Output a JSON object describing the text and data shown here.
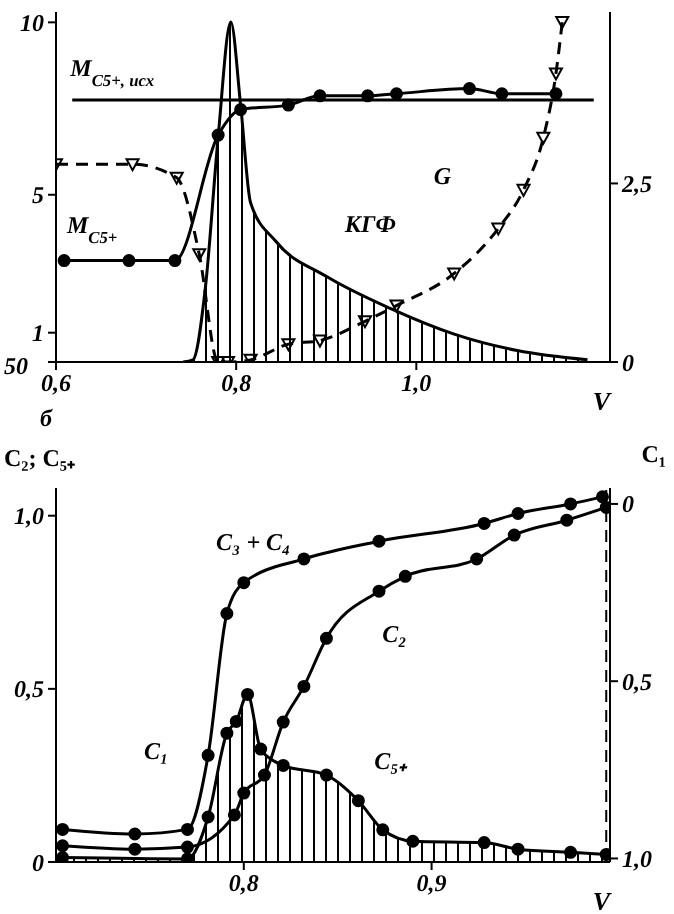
{
  "chart_data": [
    {
      "type": "line",
      "xlabel": "V",
      "xlim": [
        0.6,
        1.215
      ],
      "xticks": [
        {
          "value": 0.6,
          "label": "0,6"
        },
        {
          "value": 0.8,
          "label": "0,8"
        },
        {
          "value": 1.0,
          "label": "1,0"
        }
      ],
      "ylim": [
        0.15,
        10.3
      ],
      "yticks": [
        {
          "value": 0.15,
          "label": null
        },
        1,
        5,
        10
      ],
      "y2lim": [
        0,
        4.9
      ],
      "y2ticks": [
        0,
        {
          "value": 2.5,
          "label": "2,5"
        }
      ],
      "series": [
        {
          "name": "M$_{C5+, исх}$",
          "color": "#000000",
          "marker": "none",
          "x": [
            0.618,
            1.197
          ],
          "values": [
            7.75,
            7.75
          ]
        },
        {
          "name": "M$_{C5+}$",
          "color": "#000000",
          "marker": "circle",
          "x": [
            0.609,
            0.681,
            0.732,
            0.78,
            0.805,
            0.858,
            0.893,
            0.946,
            0.978,
            1.059,
            1.095,
            1.155
          ],
          "values": [
            3.09,
            3.09,
            3.09,
            6.73,
            7.47,
            7.6,
            7.87,
            7.87,
            7.93,
            8.08,
            7.93,
            7.93
          ]
        },
        {
          "name": "КГФ",
          "type": "area",
          "color": "#000000",
          "axis": "y2",
          "marker": "none",
          "x": [
            0.741,
            0.752,
            0.766,
            0.78,
            0.794,
            0.805,
            0.816,
            0.844,
            0.9,
            0.971,
            1.042,
            1.112,
            1.19
          ],
          "values": [
            0,
            0.03,
            1.06,
            3.15,
            4.76,
            3.59,
            2.23,
            1.69,
            1.2,
            0.75,
            0.39,
            0.16,
            0.03
          ]
        },
        {
          "name": "G",
          "color": "#000000",
          "axis": "y2",
          "marker": "triangle",
          "line_style": "dashed",
          "x": [
            0.6,
            0.685,
            0.734,
            0.759,
            0.78,
            0.791,
            0.816,
            0.858,
            0.893,
            0.943,
            0.978,
            1.042,
            1.091,
            1.119,
            1.141,
            1.155,
            1.162
          ],
          "values": [
            2.77,
            2.77,
            2.58,
            1.51,
            0,
            0,
            0.03,
            0.25,
            0.3,
            0.57,
            0.79,
            1.24,
            1.87,
            2.41,
            3.14,
            4.04,
            4.76
          ]
        }
      ],
      "annotations": [
        "50"
      ]
    },
    {
      "type": "line",
      "xlabel": "V",
      "ylabel": "C₂; C₅₊",
      "y2label": "C₁",
      "xlim": [
        0.7,
        0.995
      ],
      "xticks": [
        {
          "value": 0.8,
          "label": "0,8"
        },
        {
          "value": 0.9,
          "label": "0,9"
        }
      ],
      "ylim": [
        0,
        1.08
      ],
      "yticks": [
        0,
        {
          "value": 0.5,
          "label": "0,5"
        },
        {
          "value": 1.0,
          "label": "1,0"
        }
      ],
      "y2lim": [
        1.01,
        -0.045
      ],
      "y2ticks": [
        0,
        {
          "value": 0.5,
          "label": "0,5"
        },
        {
          "value": 1.0,
          "label": "1,0"
        }
      ],
      "series": [
        {
          "name": "C₁",
          "color": "#000000",
          "axis": "y2",
          "marker": "circle",
          "x": [
            0.7035,
            0.742,
            0.77,
            0.781,
            0.791,
            0.8,
            0.832,
            0.872,
            0.928,
            0.946,
            0.974,
            0.991
          ],
          "values": [
            0.918,
            0.931,
            0.918,
            0.709,
            0.309,
            0.222,
            0.155,
            0.105,
            0.055,
            0.027,
            0,
            -0.02
          ]
        },
        {
          "name": "C₂",
          "color": "#000000",
          "marker": "circle",
          "x": [
            0.7035,
            0.742,
            0.77,
            0.795,
            0.8,
            0.811,
            0.821,
            0.832,
            0.844,
            0.872,
            0.886,
            0.924,
            0.944,
            0.972,
            0.993
          ],
          "values": [
            0.047,
            0.037,
            0.043,
            0.136,
            0.199,
            0.251,
            0.404,
            0.507,
            0.646,
            0.782,
            0.825,
            0.875,
            0.944,
            0.987,
            1.024
          ]
        },
        {
          "name": "C₅₊",
          "type": "area",
          "color": "#000000",
          "marker": "circle",
          "x": [
            0.7035,
            0.77,
            0.781,
            0.791,
            0.796,
            0.802,
            0.809,
            0.821,
            0.844,
            0.861,
            0.874,
            0.89,
            0.928,
            0.946,
            0.974,
            0.993
          ],
          "values": [
            0.013,
            0.009,
            0.13,
            0.372,
            0.406,
            0.484,
            0.326,
            0.279,
            0.251,
            0.177,
            0.093,
            0.06,
            0.056,
            0.037,
            0.028,
            0.022
          ]
        }
      ],
      "ref_lines": [
        {
          "axis": "x",
          "value": 0.993,
          "line_style": "dashed"
        }
      ],
      "annotations": [
        "б",
        "C₃ + C₄"
      ]
    }
  ]
}
